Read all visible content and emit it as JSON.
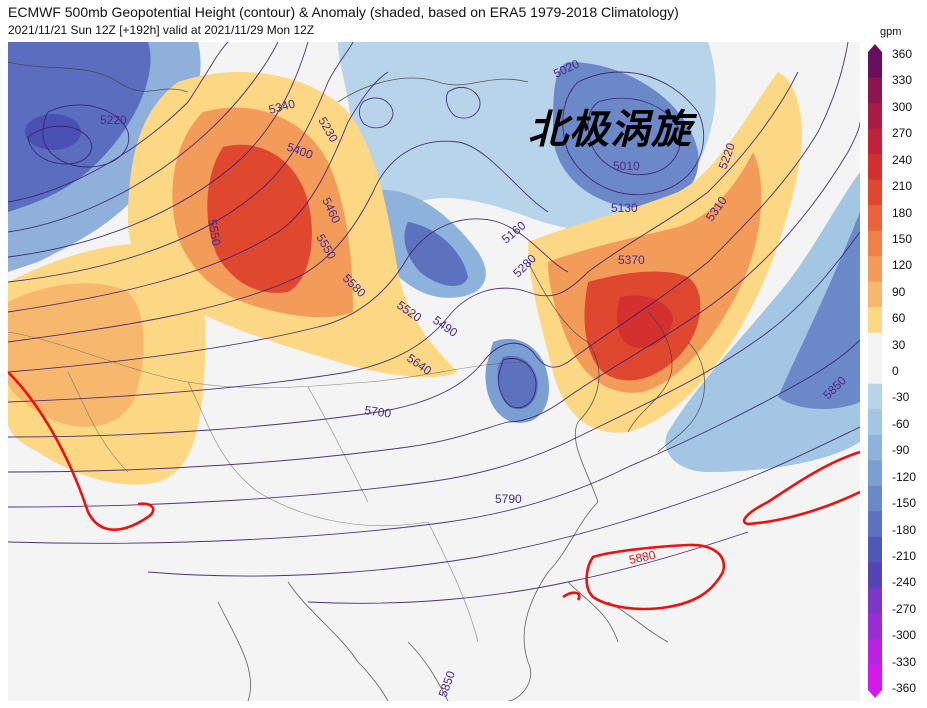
{
  "header": {
    "title": "ECMWF 500mb Geopotential Height (contour) & Anomaly (shaded, based on ERA5 1979-2018 Climatology)",
    "subtitle": "2021/11/21 Sun 12Z [+192h] valid at 2021/11/29 Mon 12Z"
  },
  "annotation": "北极涡旋",
  "colorbar": {
    "unit": "gpm",
    "labels": [
      "360",
      "330",
      "300",
      "270",
      "240",
      "210",
      "180",
      "150",
      "120",
      "90",
      "60",
      "30",
      "0",
      "-30",
      "-60",
      "-90",
      "-120",
      "-150",
      "-180",
      "-210",
      "-240",
      "-270",
      "-300",
      "-330",
      "-360"
    ],
    "colors": [
      "#6a0f5e",
      "#8c1650",
      "#a81c45",
      "#c0223a",
      "#d43030",
      "#e0472f",
      "#e8643a",
      "#ef8047",
      "#f39c5a",
      "#f7b86e",
      "#fcd784",
      "#f3f3f3",
      "#f3f3f3",
      "#b7d4ea",
      "#a3c6e4",
      "#8db3dc",
      "#7b9fd2",
      "#6b89c8",
      "#5d72bf",
      "#4e59b6",
      "#5544b3",
      "#7a38c4",
      "#9a2ed3",
      "#b722df",
      "#d31aeb"
    ]
  },
  "contour_labels": [
    "5220",
    "5340",
    "5230",
    "5400",
    "5020",
    "5010",
    "5220",
    "5550",
    "5460",
    "5160",
    "5130",
    "5310",
    "5550",
    "5280",
    "5370",
    "5580",
    "5520",
    "5490",
    "5640",
    "5700",
    "5850",
    "5790",
    "5880",
    "5850"
  ]
}
